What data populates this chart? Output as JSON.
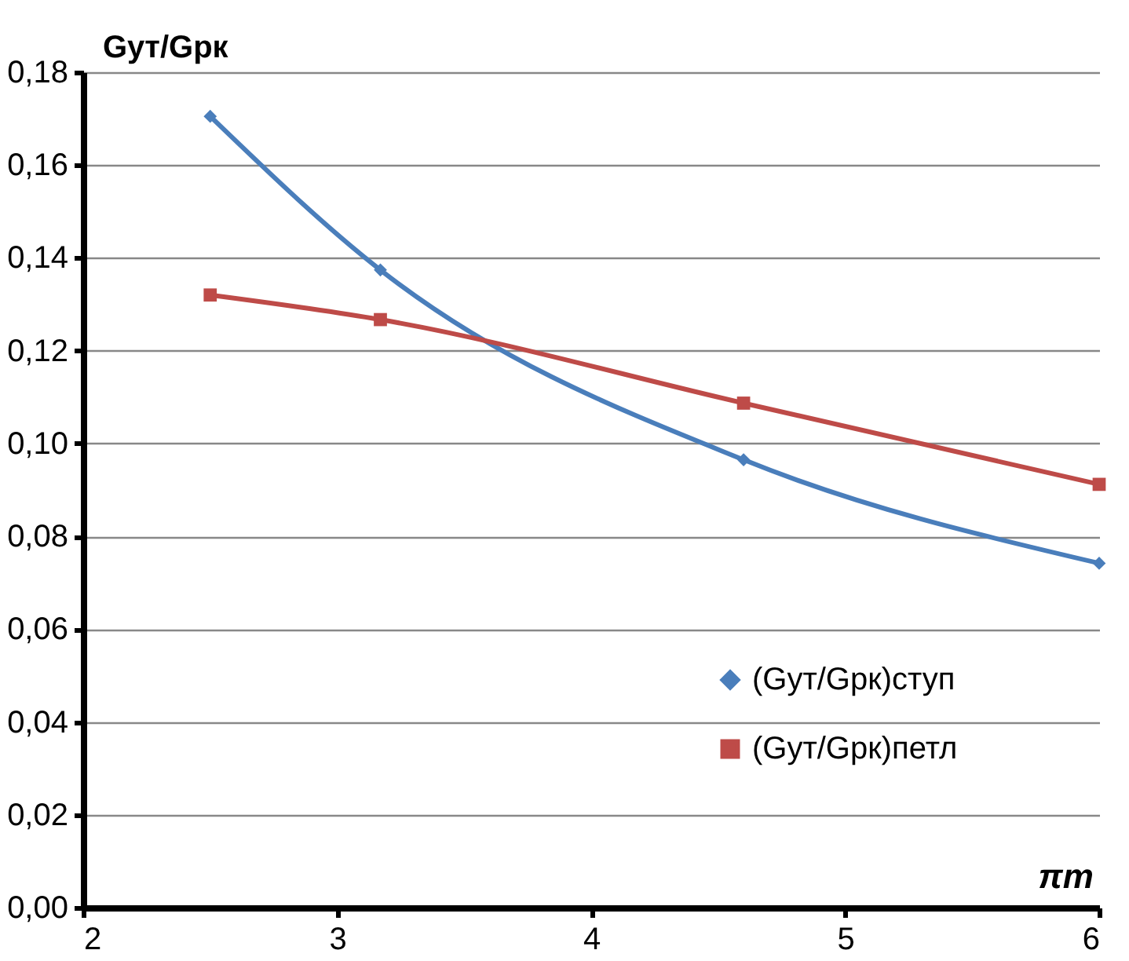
{
  "chart_data": {
    "type": "line",
    "xlabel": "πm",
    "ylabel": "Gyт/Gpк",
    "xlim": [
      2,
      6
    ],
    "xticks": [
      2,
      3,
      4,
      5,
      6
    ],
    "ylim": [
      0,
      0.18
    ],
    "yticks": [
      {
        "value": 0,
        "label": "0,00"
      },
      {
        "value": 0.02,
        "label": "0,02"
      },
      {
        "value": 0.04,
        "label": "0,04"
      },
      {
        "value": 0.06,
        "label": "0,06"
      },
      {
        "value": 0.08,
        "label": "0,08"
      },
      {
        "value": 0.1,
        "label": "0,10"
      },
      {
        "value": 0.12,
        "label": "0,12"
      },
      {
        "value": 0.14,
        "label": "0,14"
      },
      {
        "value": 0.16,
        "label": "0,16"
      },
      {
        "value": 0.18,
        "label": "0,18"
      }
    ],
    "grid": "y",
    "legend": "bottom right",
    "line_style": "solid",
    "series": [
      {
        "name": "(Gyт/Gpк)ступ",
        "color": "#4a7ebb",
        "marker": "diamond",
        "x": [
          2.5,
          3.17,
          4.6,
          6
        ],
        "values": [
          0.1705,
          0.1374,
          0.0965,
          0.0742
        ]
      },
      {
        "name": "(Gyт/Gpк)петл",
        "color": "#be4b48",
        "marker": "square",
        "x": [
          2.5,
          3.17,
          4.6,
          6
        ],
        "values": [
          0.132,
          0.1267,
          0.1087,
          0.0912
        ]
      }
    ]
  }
}
